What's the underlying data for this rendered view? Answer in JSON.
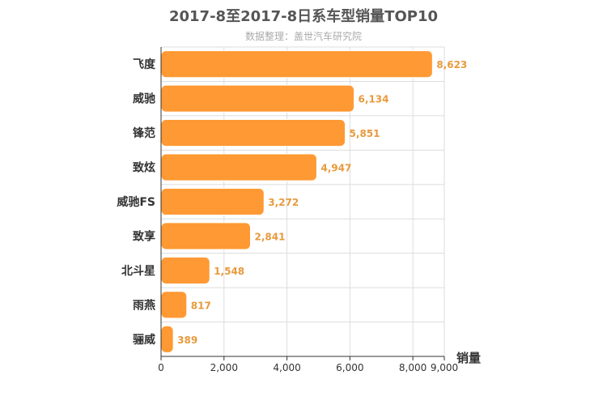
{
  "header": {
    "title": "2017-8至2017-8日系车型销量TOP10",
    "subtitle": "数据整理：盖世汽车研究院"
  },
  "chart_data": {
    "type": "bar",
    "orientation": "horizontal",
    "title": "2017-8至2017-8日系车型销量TOP10",
    "subtitle": "数据整理：盖世汽车研究院",
    "categories": [
      "飞度",
      "威驰",
      "锋范",
      "致炫",
      "威驰FS",
      "致享",
      "北斗星",
      "雨燕",
      "骊威"
    ],
    "values": [
      8623,
      6134,
      5851,
      4947,
      3272,
      2841,
      1548,
      817,
      389
    ],
    "value_labels": [
      "8,623",
      "6,134",
      "5,851",
      "4,947",
      "3,272",
      "2,841",
      "1,548",
      "817",
      "389"
    ],
    "xlabel": "销量",
    "ylabel": "",
    "xlim": [
      0,
      9000
    ],
    "xticks": [
      0,
      2000,
      4000,
      6000,
      8000,
      9000
    ],
    "xtick_labels": [
      "0",
      "2,000",
      "4,000",
      "6,000",
      "8,000",
      "9,000"
    ],
    "grid": true,
    "bar_color": "#ff9933",
    "label_color": "#e89a3c"
  }
}
